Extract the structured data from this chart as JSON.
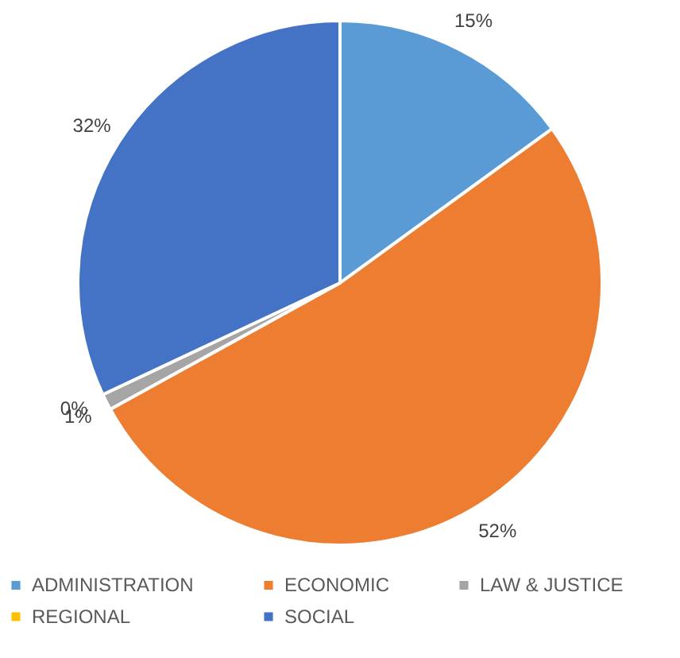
{
  "chart_data": {
    "type": "pie",
    "categories": [
      "ADMINISTRATION",
      "ECONOMIC",
      "LAW & JUSTICE",
      "REGIONAL",
      "SOCIAL"
    ],
    "values": [
      15,
      52,
      1,
      0,
      32
    ],
    "colors": [
      "#5b9bd5",
      "#ed7d31",
      "#a5a5a5",
      "#ffc000",
      "#4472c4"
    ],
    "value_labels": [
      "15%",
      "52%",
      "1%",
      "0%",
      "32%"
    ],
    "legend": "bottom"
  }
}
